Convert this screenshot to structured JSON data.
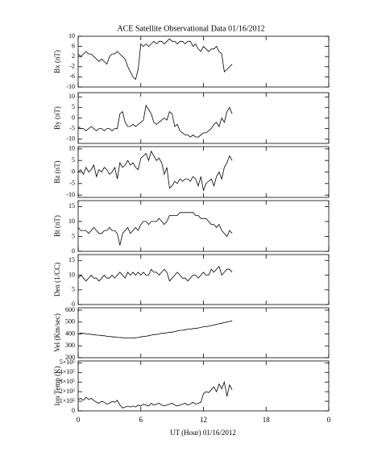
{
  "chart_data": {
    "type": "line",
    "title": "ACE Satellite Observational Data   01/16/2012",
    "xlabel": "UT (Hour)  01/16/2012",
    "xlim": [
      0,
      24
    ],
    "xticks": [
      0,
      6,
      12,
      18,
      {
        "value": 24,
        "label": "0"
      }
    ],
    "color": "#000000",
    "x": [
      0,
      0.25,
      0.5,
      0.75,
      1,
      1.25,
      1.5,
      1.75,
      2,
      2.25,
      2.5,
      2.75,
      3,
      3.25,
      3.5,
      3.75,
      4,
      4.25,
      4.5,
      4.75,
      5,
      5.25,
      5.5,
      5.75,
      6,
      6.25,
      6.5,
      6.75,
      7,
      7.25,
      7.5,
      7.75,
      8,
      8.25,
      8.5,
      8.75,
      9,
      9.25,
      9.5,
      9.75,
      10,
      10.25,
      10.5,
      10.75,
      11,
      11.25,
      11.5,
      11.75,
      12,
      12.25,
      12.5,
      12.75,
      13,
      13.25,
      13.5,
      13.75,
      14,
      14.25,
      14.5,
      14.75
    ],
    "panels": [
      {
        "ylabel": "Bx (nT)",
        "ylim": [
          -10,
          10
        ],
        "yticks": [
          10,
          6,
          2,
          -2,
          -6,
          -10
        ],
        "values": [
          3,
          2,
          3,
          4,
          3,
          3,
          2,
          1,
          0,
          1,
          0,
          -1,
          2,
          3,
          3,
          4,
          3,
          2,
          1,
          -2,
          -4,
          -6,
          -7,
          -3,
          7,
          6,
          7,
          6,
          7,
          8,
          7,
          8,
          8,
          7,
          8,
          9,
          8,
          8,
          7,
          8,
          8,
          7,
          8,
          8,
          6,
          7,
          5,
          4,
          6,
          5,
          4,
          5,
          5,
          6,
          4,
          3,
          -4,
          -3,
          -2,
          -1
        ]
      },
      {
        "ylabel": "By (nT)",
        "ylim": [
          -12,
          12
        ],
        "yticks": [
          10,
          5,
          0,
          -5,
          -10
        ],
        "values": [
          -4,
          -5,
          -5,
          -6,
          -5,
          -4,
          -5,
          -6,
          -5,
          -5,
          -6,
          -5,
          -5,
          -6,
          -5,
          -5,
          2,
          3,
          -2,
          -4,
          -4,
          -3,
          -4,
          -3,
          -2,
          -1,
          6,
          4,
          2,
          -2,
          -3,
          -2,
          -1,
          0,
          -1,
          3,
          2,
          -4,
          -3,
          -6,
          -7,
          -8,
          -8,
          -9,
          -8,
          -9,
          -9,
          -8,
          -7,
          -7,
          -6,
          -5,
          -3,
          -2,
          -4,
          0,
          -2,
          3,
          5,
          2
        ]
      },
      {
        "ylabel": "Bz (nT)",
        "ylim": [
          -11,
          11
        ],
        "yticks": [
          10,
          5,
          0,
          -5,
          -10
        ],
        "values": [
          0,
          1,
          -1,
          2,
          0,
          1,
          3,
          -2,
          1,
          0,
          2,
          1,
          -1,
          0,
          2,
          -3,
          4,
          2,
          3,
          5,
          3,
          4,
          2,
          1,
          6,
          7,
          8,
          5,
          9,
          7,
          5,
          6,
          4,
          -1,
          2,
          -7,
          -6,
          -4,
          -5,
          -3,
          -4,
          -3,
          -3,
          -4,
          -2,
          -3,
          -6,
          -2,
          -8,
          -5,
          -4,
          -3,
          -6,
          -2,
          0,
          -3,
          2,
          4,
          7,
          5
        ]
      },
      {
        "ylabel": "Bt (nT)",
        "ylim": [
          0,
          17
        ],
        "yticks": [
          0,
          5,
          10,
          15
        ],
        "values": [
          8,
          7,
          7,
          7,
          6,
          7,
          8,
          7,
          6,
          6,
          7,
          7,
          8,
          7,
          7,
          6,
          2,
          6,
          7,
          8,
          6,
          7,
          8,
          7,
          9,
          10,
          10,
          9,
          10,
          10,
          10,
          11,
          10,
          9,
          10,
          12,
          12,
          12,
          12,
          13,
          13,
          13,
          13,
          13,
          13,
          12,
          12,
          11,
          11,
          11,
          10,
          9,
          9,
          8,
          9,
          7,
          6,
          5,
          7,
          6
        ]
      },
      {
        "ylabel": "Den (1/CC)",
        "ylim": [
          0,
          17
        ],
        "yticks": [
          0,
          5,
          10,
          15
        ],
        "values": [
          9,
          10,
          9,
          8,
          9,
          10,
          9,
          9,
          8,
          9,
          10,
          9,
          9,
          10,
          9,
          10,
          11,
          10,
          9,
          11,
          10,
          11,
          10,
          11,
          10,
          11,
          10,
          10,
          12,
          11,
          11,
          10,
          11,
          12,
          11,
          8,
          9,
          10,
          11,
          10,
          9,
          9,
          8,
          9,
          10,
          10,
          9,
          10,
          11,
          10,
          10,
          12,
          11,
          12,
          13,
          10,
          11,
          12,
          12,
          11
        ]
      },
      {
        "ylabel": "Vel (Km/sec)",
        "ylim": [
          200,
          620
        ],
        "yticks": [
          200,
          300,
          400,
          500,
          600
        ],
        "values": [
          400,
          405,
          405,
          400,
          400,
          395,
          395,
          390,
          390,
          385,
          385,
          380,
          380,
          375,
          375,
          370,
          370,
          368,
          365,
          365,
          365,
          365,
          368,
          370,
          375,
          378,
          380,
          385,
          390,
          395,
          395,
          400,
          405,
          405,
          410,
          415,
          415,
          420,
          425,
          430,
          430,
          435,
          440,
          440,
          445,
          445,
          450,
          455,
          460,
          460,
          465,
          470,
          475,
          480,
          485,
          490,
          495,
          500,
          505,
          510
        ]
      },
      {
        "ylabel": "Ion Temp (K)",
        "ylim": [
          0,
          520000
        ],
        "yticks": [
          0,
          {
            "value": 100000,
            "label": "1×10⁵"
          },
          {
            "value": 200000,
            "label": "2×10⁵"
          },
          {
            "value": 300000,
            "label": "3×10⁵"
          },
          {
            "value": 400000,
            "label": "4×10⁵"
          },
          {
            "value": 500000,
            "label": "5×10⁵"
          }
        ],
        "values": [
          120000,
          130000,
          110000,
          140000,
          120000,
          130000,
          110000,
          90000,
          80000,
          100000,
          90000,
          70000,
          80000,
          100000,
          90000,
          110000,
          60000,
          30000,
          40000,
          50000,
          40000,
          50000,
          40000,
          60000,
          50000,
          70000,
          60000,
          50000,
          80000,
          60000,
          70000,
          80000,
          60000,
          50000,
          60000,
          70000,
          80000,
          60000,
          50000,
          60000,
          70000,
          80000,
          60000,
          70000,
          90000,
          70000,
          80000,
          90000,
          180000,
          200000,
          190000,
          220000,
          250000,
          200000,
          280000,
          230000,
          300000,
          150000,
          270000,
          220000
        ]
      }
    ]
  }
}
